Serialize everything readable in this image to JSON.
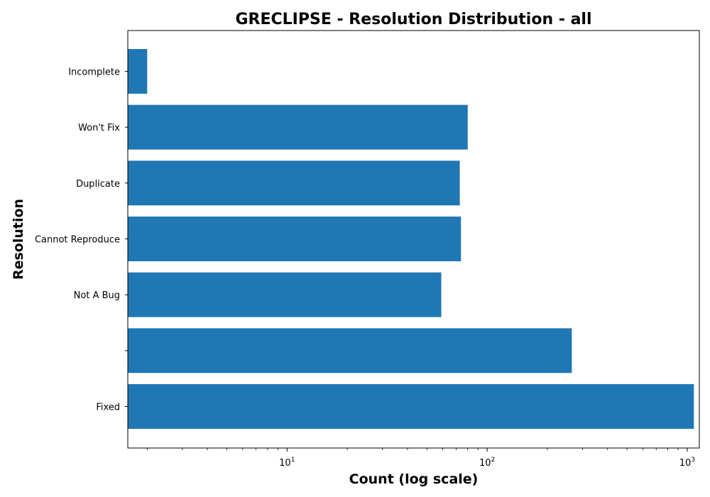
{
  "chart_data": {
    "type": "bar",
    "orientation": "horizontal",
    "title": "GRECLIPSE - Resolution Distribution - all",
    "xlabel": "Count (log scale)",
    "ylabel": "Resolution",
    "x_scale": "log",
    "xlim": [
      1.6,
      1150
    ],
    "x_ticks": [
      {
        "base": "10",
        "exp": "1",
        "value": 10
      },
      {
        "base": "10",
        "exp": "2",
        "value": 100
      },
      {
        "base": "10",
        "exp": "3",
        "value": 1000
      }
    ],
    "categories": [
      "Fixed",
      "",
      "Not A Bug",
      "Cannot Reproduce",
      "Duplicate",
      "Won't Fix",
      "Incomplete"
    ],
    "values": [
      1080,
      265,
      59,
      74,
      73,
      80,
      2
    ],
    "bar_color": "#1f77b4",
    "grid": false
  }
}
